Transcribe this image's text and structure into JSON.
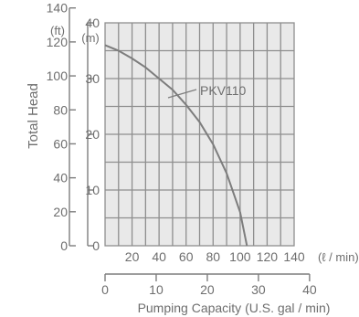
{
  "chart_data": {
    "type": "line",
    "ylabel": "Total Head",
    "y_unit_ft": "(ft)",
    "y_unit_m": "(m)",
    "y_ticks_ft": [
      0,
      20,
      40,
      60,
      80,
      100,
      120,
      140
    ],
    "y_ticks_m": [
      0,
      10,
      20,
      30,
      40
    ],
    "ylim_m": [
      0,
      40
    ],
    "x_unit_lpm": "(ℓ / min)",
    "x_ticks_lpm": [
      20,
      40,
      60,
      80,
      100,
      120,
      140
    ],
    "xlim_lpm": [
      0,
      140
    ],
    "x_ticks_gpm": [
      0,
      10,
      20,
      30,
      40
    ],
    "xlabel_gpm": "Pumping Capacity  (U.S. gal / min)",
    "grid": true,
    "series": [
      {
        "name": "PKV110",
        "x": [
          0,
          10,
          20,
          30,
          40,
          50,
          60,
          70,
          80,
          90,
          100,
          105
        ],
        "y": [
          36,
          35,
          33.6,
          32,
          30,
          28,
          25.3,
          22.2,
          18.2,
          13,
          6,
          0
        ]
      }
    ]
  }
}
